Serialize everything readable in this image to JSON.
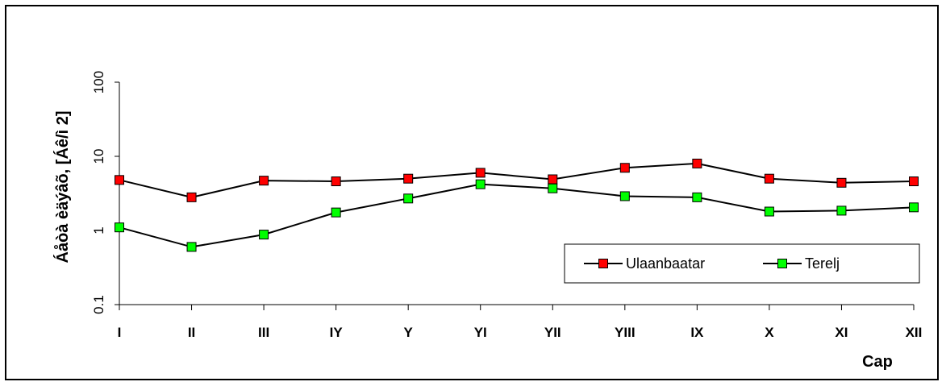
{
  "chart_data": {
    "type": "line",
    "yscale": "log",
    "ylim": [
      0.1,
      100
    ],
    "yticks": [
      0.1,
      1,
      10,
      100
    ],
    "ylabel": "Áåòà èäýâõ, [Áê/ì 2]",
    "xlabel": "Cap",
    "categories": [
      "I",
      "II",
      "III",
      "IY",
      "Y",
      "YI",
      "YII",
      "YIII",
      "IX",
      "X",
      "XI",
      "XII"
    ],
    "series": [
      {
        "name": "Ulaanbaatar",
        "color": "#ff0000",
        "values": [
          4.8,
          2.8,
          4.7,
          4.6,
          5.0,
          6.0,
          4.9,
          7.0,
          8.0,
          5.0,
          4.4,
          4.6
        ]
      },
      {
        "name": "Terelj",
        "color": "#00ff00",
        "values": [
          1.1,
          0.6,
          0.88,
          1.75,
          2.7,
          4.2,
          3.7,
          2.9,
          2.8,
          1.8,
          1.85,
          2.05
        ]
      }
    ],
    "legend": "inside-bottom-right",
    "grid": false
  }
}
